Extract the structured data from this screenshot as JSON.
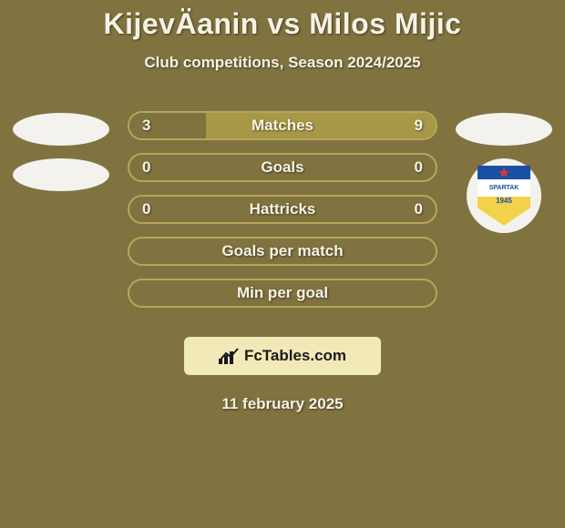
{
  "background_color": "#807340",
  "text_color": "#f6f3e4",
  "title": {
    "player1": "KijevÄanin",
    "vs": "vs",
    "player2": "Milos Mijic",
    "color": "#f6f3e4"
  },
  "subtitle": "Club competitions, Season 2024/2025",
  "bars": {
    "bg_color": "#807340",
    "border_color": "#b5a757",
    "border_width": 2,
    "left_fill_color": "#807340",
    "right_fill_color": "#a79848",
    "label_color": "#f6f3e4",
    "value_color": "#f6f3e4",
    "rows": [
      {
        "label": "Matches",
        "left": "3",
        "right": "9",
        "left_pct": 25,
        "right_pct": 75,
        "show_values": true
      },
      {
        "label": "Goals",
        "left": "0",
        "right": "0",
        "left_pct": 0,
        "right_pct": 0,
        "show_values": true
      },
      {
        "label": "Hattricks",
        "left": "0",
        "right": "0",
        "left_pct": 0,
        "right_pct": 0,
        "show_values": true
      },
      {
        "label": "Goals per match",
        "left": "",
        "right": "",
        "left_pct": 0,
        "right_pct": 0,
        "show_values": false
      },
      {
        "label": "Min per goal",
        "left": "",
        "right": "",
        "left_pct": 0,
        "right_pct": 0,
        "show_values": false
      }
    ]
  },
  "left_badges": {
    "ellipses": [
      {
        "color": "#f3f2ee"
      },
      {
        "color": "#f3f2ee"
      }
    ]
  },
  "right_badges": {
    "ellipse_color": "#f3f2ee",
    "club": {
      "circle_color": "#f3f2ee",
      "shield_top": "#1a4fa3",
      "shield_mid": "#ffffff",
      "shield_bot": "#f2d24a",
      "star_color": "#d63b3b",
      "text_top": "SPARTAK",
      "text_top_color": "#1a4fa3",
      "text_bot": "1945",
      "text_bot_color": "#1a4fa3"
    }
  },
  "fctables": {
    "bg_color": "#f2e9b8",
    "text_color": "#1a1a1a",
    "text": "FcTables.com",
    "icon_color": "#1a1a1a"
  },
  "date": "11 february 2025"
}
